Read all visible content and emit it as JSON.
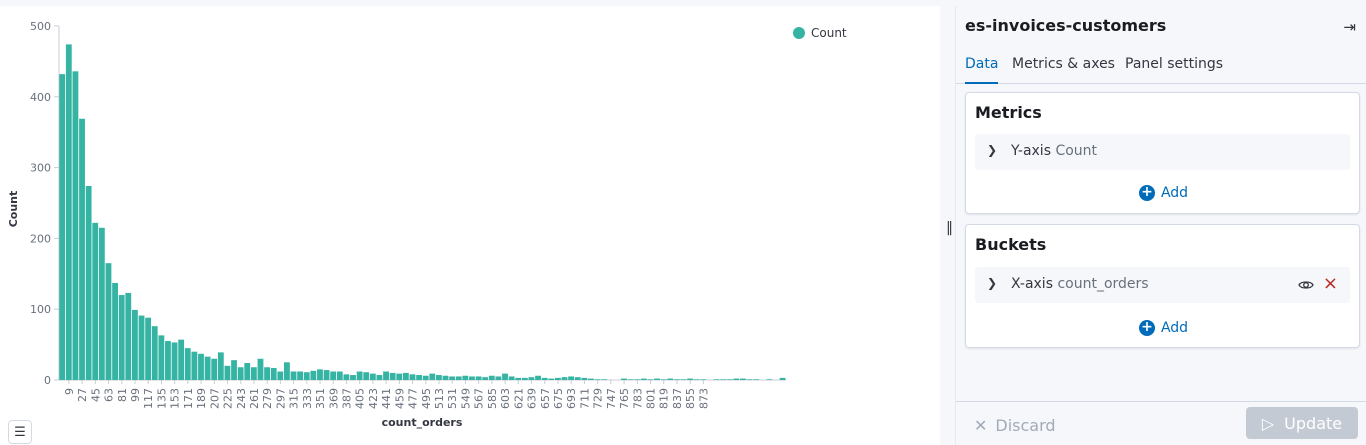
{
  "legend": {
    "label": "Count",
    "color": "#35b3a3"
  },
  "chart_data": {
    "type": "bar",
    "xlabel": "count_orders",
    "ylabel": "Count",
    "ylim": [
      0,
      500
    ],
    "yticks": [
      0,
      100,
      200,
      300,
      400,
      500
    ],
    "xtick_labels": [
      "9",
      "27",
      "45",
      "63",
      "81",
      "99",
      "117",
      "135",
      "153",
      "171",
      "189",
      "207",
      "225",
      "243",
      "261",
      "279",
      "297",
      "315",
      "333",
      "351",
      "369",
      "387",
      "405",
      "423",
      "441",
      "459",
      "477",
      "495",
      "513",
      "531",
      "549",
      "567",
      "585",
      "603",
      "621",
      "639",
      "657",
      "675",
      "693",
      "711",
      "729",
      "747",
      "765",
      "783",
      "801",
      "819",
      "837",
      "855",
      "873"
    ],
    "series": [
      {
        "name": "Count",
        "values": [
          432,
          474,
          436,
          369,
          274,
          222,
          215,
          165,
          137,
          120,
          123,
          99,
          91,
          88,
          76,
          63,
          55,
          53,
          57,
          45,
          40,
          37,
          33,
          30,
          39,
          20,
          28,
          18,
          24,
          18,
          30,
          18,
          17,
          12,
          25,
          12,
          12,
          11,
          13,
          15,
          14,
          12,
          12,
          8,
          7,
          12,
          11,
          9,
          7,
          12,
          10,
          9,
          10,
          8,
          7,
          6,
          9,
          7,
          6,
          5,
          5,
          6,
          5,
          5,
          4,
          6,
          5,
          9,
          5,
          3,
          3,
          4,
          6,
          3,
          2,
          3,
          4,
          5,
          4,
          3,
          2,
          1,
          1,
          0,
          0,
          2,
          1,
          1,
          2,
          1,
          2,
          1,
          2,
          1,
          1,
          2,
          1,
          1,
          0,
          1,
          1,
          1,
          2,
          2,
          1,
          1,
          0,
          1,
          0,
          3
        ]
      }
    ],
    "grid": false,
    "legend_position": "top-right"
  },
  "sidebar": {
    "title": "es-invoices-customers",
    "tabs": [
      "Data",
      "Metrics & axes",
      "Panel settings"
    ],
    "metrics": {
      "title": "Metrics",
      "row_label": "Y-axis",
      "row_value": "Count",
      "add_label": "Add"
    },
    "buckets": {
      "title": "Buckets",
      "row_label": "X-axis",
      "row_value": "count_orders",
      "add_label": "Add"
    },
    "discard_label": "Discard",
    "update_label": "Update"
  }
}
